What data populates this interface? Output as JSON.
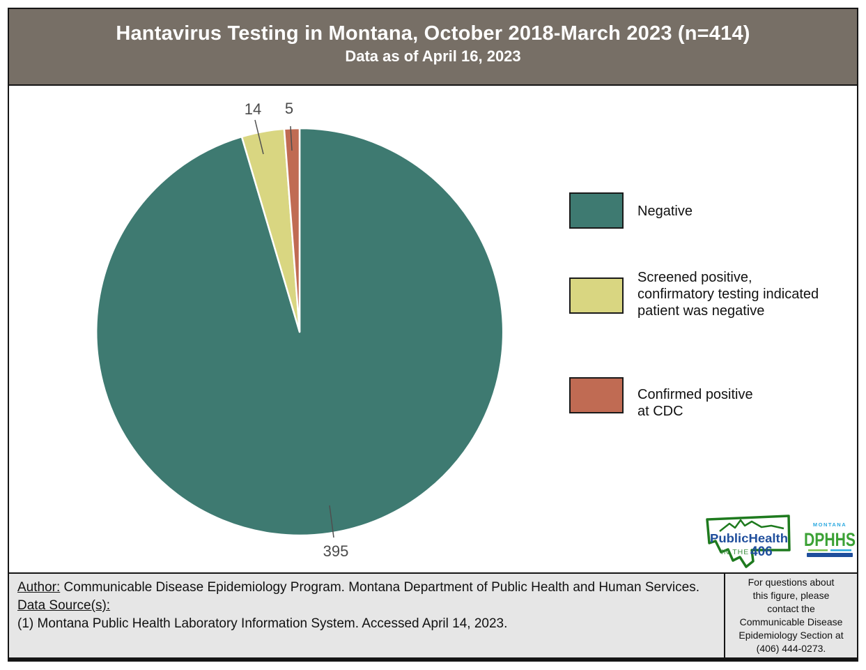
{
  "header": {
    "title": "Hantavirus Testing in Montana, October 2018-March 2023 (n=414)",
    "subtitle": "Data as of April 16, 2023"
  },
  "chart_data": {
    "type": "pie",
    "title": "Hantavirus Testing in Montana, October 2018-March 2023 (n=414)",
    "subtitle": "Data as of April 16, 2023",
    "total": 414,
    "start_angle": "12 o'clock",
    "direction": "clockwise",
    "legend_position": "right",
    "slices": [
      {
        "label": "Negative",
        "value": 395,
        "color": "#3E7A71"
      },
      {
        "label": "Screened positive, confirmatory testing indicated patient was negative",
        "value": 14,
        "color": "#D9D681"
      },
      {
        "label": "Confirmed positive at CDC",
        "value": 5,
        "color": "#C06B53"
      }
    ]
  },
  "legend": {
    "items": [
      {
        "text": "Negative",
        "color": "#3E7A71"
      },
      {
        "text": "Screened positive,\nconfirmatory testing indicated\npatient was negative",
        "color": "#D9D681"
      },
      {
        "text": "Confirmed positive\nat CDC",
        "color": "#C06B53"
      }
    ]
  },
  "footer": {
    "author_label": "Author:",
    "author_text": "Communicable Disease Epidemiology Program. Montana Department of Public Health and Human Services.",
    "source_label": "Data Source(s):",
    "source_line": "(1) Montana Public Health Laboratory Information System. Accessed April 14, 2023.",
    "contact": "For questions about\nthis figure, please\ncontact the\nCommunicable Disease\nEpidemiology Section at\n(406) 444-0273."
  },
  "logos": {
    "ph406": {
      "line1": "PublicHealth",
      "line2_prefix": "IN THE",
      "line2_number": "406"
    },
    "dphhs": {
      "state": "MONTANA",
      "name": "DPHHS"
    }
  },
  "colors": {
    "header_bg": "#776F66",
    "footer_bg": "#E6E6E6",
    "label_color": "#4A4A4A",
    "ph406_blue": "#1F4E9C",
    "ph406_green": "#1E7A1E",
    "dphhs_green": "#3BA135",
    "dphhs_blue": "#2BA9E0"
  }
}
